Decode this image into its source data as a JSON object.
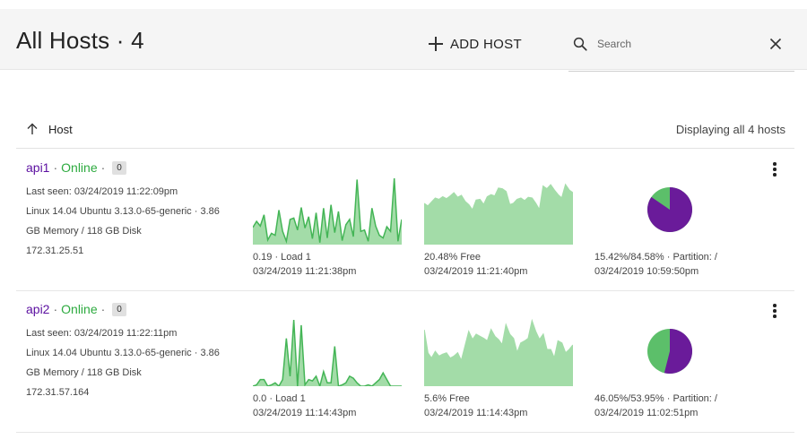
{
  "header": {
    "title": "All Hosts · 4",
    "add_label": "ADD HOST",
    "search_placeholder": "Search"
  },
  "list_header": {
    "sort_label": "Host",
    "display_count": "Displaying all 4 hosts"
  },
  "colors": {
    "host_name": "#5b0fa0",
    "online": "#2daa3f",
    "chart_fill": "#a3dca8",
    "chart_line": "#44b556",
    "pie_used": "#6a1b9a",
    "pie_free": "#5cbf6a"
  },
  "icons": [
    "plus-icon",
    "search-icon",
    "close-icon",
    "arrow-up-icon",
    "more-vert-icon"
  ],
  "hosts": [
    {
      "name": "api1",
      "status": "Online",
      "badge": "0",
      "last_seen": "Last seen: 03/24/2019 11:22:09pm",
      "system": "Linux 14.04 Ubuntu 3.13.0-65-generic · 3.86",
      "memory": "GB Memory / 118 GB Disk",
      "ip": "172.31.25.51",
      "load": {
        "caption": "0.19 · Load 1",
        "time": "03/24/2019 11:21:38pm",
        "series": [
          0.26,
          0.35,
          0.28,
          0.45,
          0.07,
          0.17,
          0.14,
          0.52,
          0.2,
          0.05,
          0.38,
          0.4,
          0.22,
          0.56,
          0.25,
          0.42,
          0.09,
          0.48,
          0.03,
          0.55,
          0.1,
          0.6,
          0.18,
          0.5,
          0.06,
          0.3,
          0.38,
          0.12,
          0.98,
          0.2,
          0.22,
          0.05,
          0.55,
          0.28,
          0.14,
          0.1,
          0.27,
          0.2,
          1.0,
          0.05,
          0.38
        ]
      },
      "memory_free": {
        "caption": "20.48% Free",
        "time": "03/24/2019 11:21:40pm",
        "series": [
          0.62,
          0.58,
          0.64,
          0.7,
          0.68,
          0.72,
          0.69,
          0.73,
          0.78,
          0.71,
          0.74,
          0.65,
          0.6,
          0.52,
          0.67,
          0.68,
          0.6,
          0.72,
          0.75,
          0.73,
          0.85,
          0.84,
          0.8,
          0.6,
          0.62,
          0.68,
          0.7,
          0.66,
          0.71,
          0.7,
          0.62,
          0.52,
          0.88,
          0.84,
          0.9,
          0.82,
          0.75,
          0.7,
          0.9,
          0.82,
          0.78
        ]
      },
      "disk": {
        "caption": "15.42%/84.58% · Partition: /",
        "time": "03/24/2019 10:59:50pm",
        "used": 84.58,
        "free": 15.42
      }
    },
    {
      "name": "api2",
      "status": "Online",
      "badge": "0",
      "last_seen": "Last seen: 03/24/2019 11:22:11pm",
      "system": "Linux 14.04 Ubuntu 3.13.0-65-generic · 3.86",
      "memory": "GB Memory / 118 GB Disk",
      "ip": "172.31.57.164",
      "load": {
        "caption": "0.0 · Load 1",
        "time": "03/24/2019 11:14:43pm",
        "series": [
          0.0,
          0.02,
          0.1,
          0.1,
          0.0,
          0.02,
          0.05,
          0.0,
          0.1,
          0.72,
          0.15,
          1.0,
          0.0,
          0.92,
          0.02,
          0.1,
          0.08,
          0.15,
          0.0,
          0.22,
          0.05,
          0.05,
          0.6,
          0.0,
          0.02,
          0.05,
          0.15,
          0.12,
          0.05,
          0.0,
          0.0,
          0.02,
          0.0,
          0.05,
          0.1,
          0.2,
          0.1,
          0.0,
          0.0,
          0.0,
          0.0
        ]
      },
      "memory_free": {
        "caption": "5.6% Free",
        "time": "03/24/2019 11:14:43pm",
        "series": [
          0.85,
          0.5,
          0.42,
          0.52,
          0.45,
          0.48,
          0.5,
          0.42,
          0.45,
          0.5,
          0.38,
          0.6,
          0.82,
          0.7,
          0.78,
          0.75,
          0.72,
          0.68,
          0.85,
          0.75,
          0.7,
          0.62,
          0.92,
          0.78,
          0.72,
          0.5,
          0.65,
          0.68,
          0.72,
          0.98,
          0.82,
          0.7,
          0.78,
          0.55,
          0.55,
          0.42,
          0.68,
          0.65,
          0.5,
          0.55,
          0.62
        ]
      },
      "disk": {
        "caption": "46.05%/53.95% · Partition: /",
        "time": "03/24/2019 11:02:51pm",
        "used": 53.95,
        "free": 46.05
      }
    }
  ]
}
